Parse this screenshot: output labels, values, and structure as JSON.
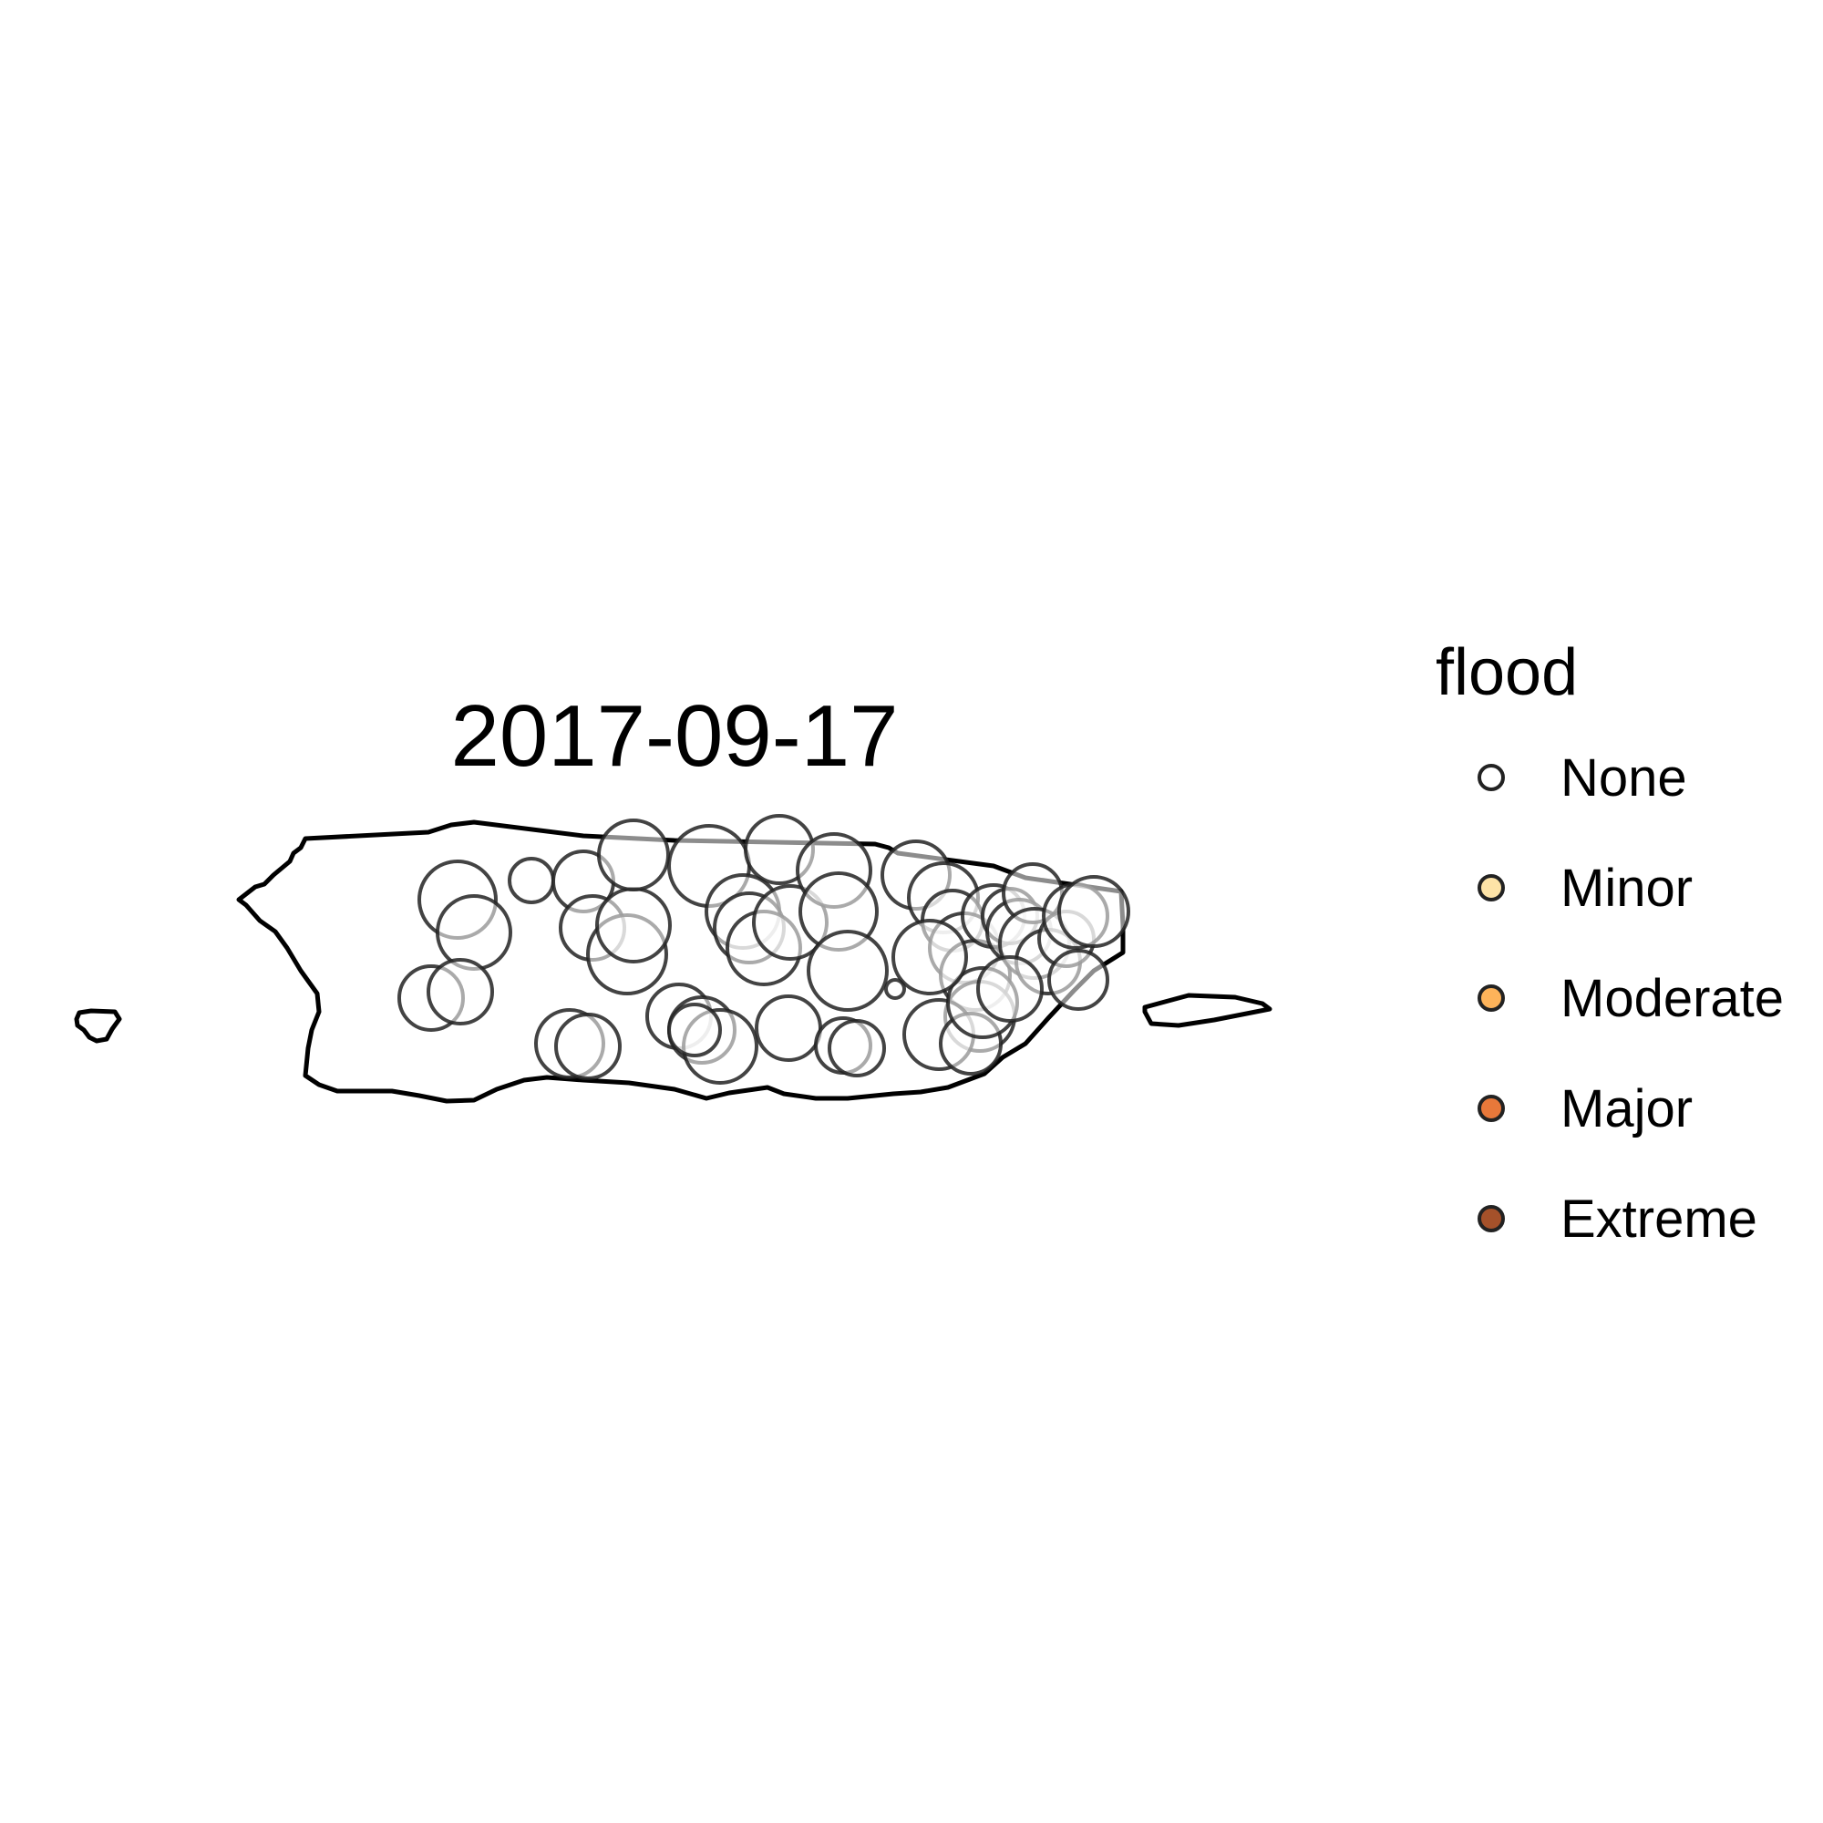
{
  "map": {
    "title": "2017-09-17",
    "region_outlines": [
      "Puerto Rico main island",
      "Mona Island",
      "Vieques"
    ]
  },
  "legend": {
    "title": "flood",
    "items": [
      {
        "label": "None",
        "color": "#ffffff"
      },
      {
        "label": "Minor",
        "color": "#fde3a7"
      },
      {
        "label": "Moderate",
        "color": "#fdb35a"
      },
      {
        "label": "Major",
        "color": "#e8783a"
      },
      {
        "label": "Extreme",
        "color": "#a5512a"
      }
    ]
  },
  "colors": {
    "outline": "#000000",
    "point_stroke": "#222222",
    "background": "#ffffff"
  }
}
